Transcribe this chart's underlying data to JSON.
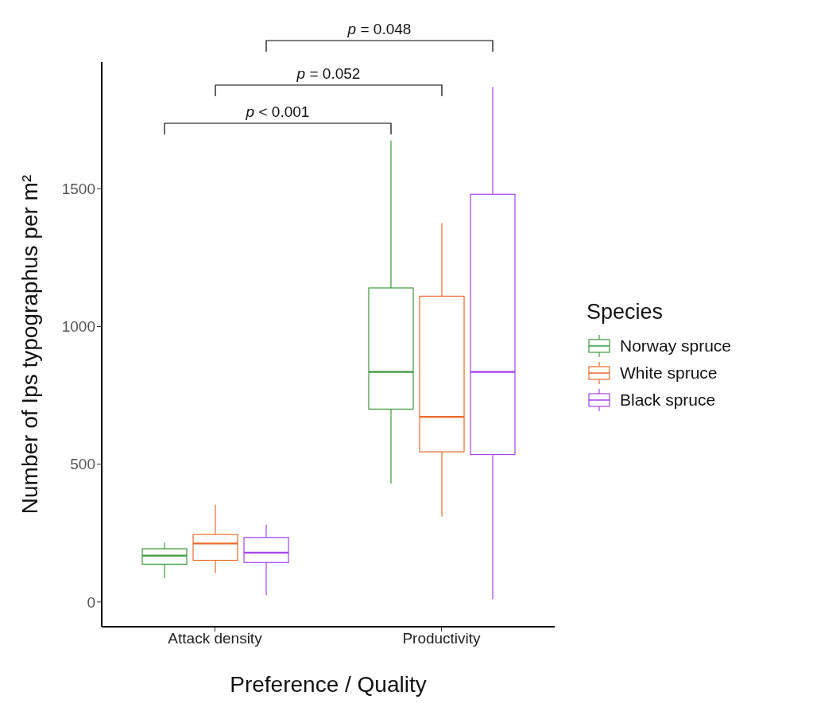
{
  "chart_data": {
    "type": "box",
    "xlabel": "Preference / Quality",
    "ylabel": "Number of Ips typographus per m²",
    "legend_title": "Species",
    "legend": "right",
    "categories": [
      "Attack density",
      "Productivity"
    ],
    "ylim": [
      -90,
      1960
    ],
    "yticks": [
      0,
      500,
      1000,
      1500
    ],
    "series": [
      {
        "name": "Norway spruce",
        "color": "#3c9a3c",
        "boxes": [
          {
            "low": 87,
            "q1": 137,
            "median": 168,
            "q3": 193,
            "high": 215
          },
          {
            "low": 430,
            "q1": 700,
            "median": 835,
            "q3": 1140,
            "high": 1675
          }
        ]
      },
      {
        "name": "White spruce",
        "color": "#ec6a2c",
        "boxes": [
          {
            "low": 104,
            "q1": 151,
            "median": 212,
            "q3": 245,
            "high": 353
          },
          {
            "low": 310,
            "q1": 545,
            "median": 672,
            "q3": 1110,
            "high": 1375
          }
        ]
      },
      {
        "name": "Black spruce",
        "color": "#a642ee",
        "boxes": [
          {
            "low": 24,
            "q1": 143,
            "median": 179,
            "q3": 234,
            "high": 281
          },
          {
            "low": 10,
            "q1": 535,
            "median": 835,
            "q3": 1480,
            "high": 1870
          }
        ]
      }
    ],
    "annotations": [
      "p < 0.001",
      "p = 0.052",
      "p = 0.048"
    ]
  }
}
